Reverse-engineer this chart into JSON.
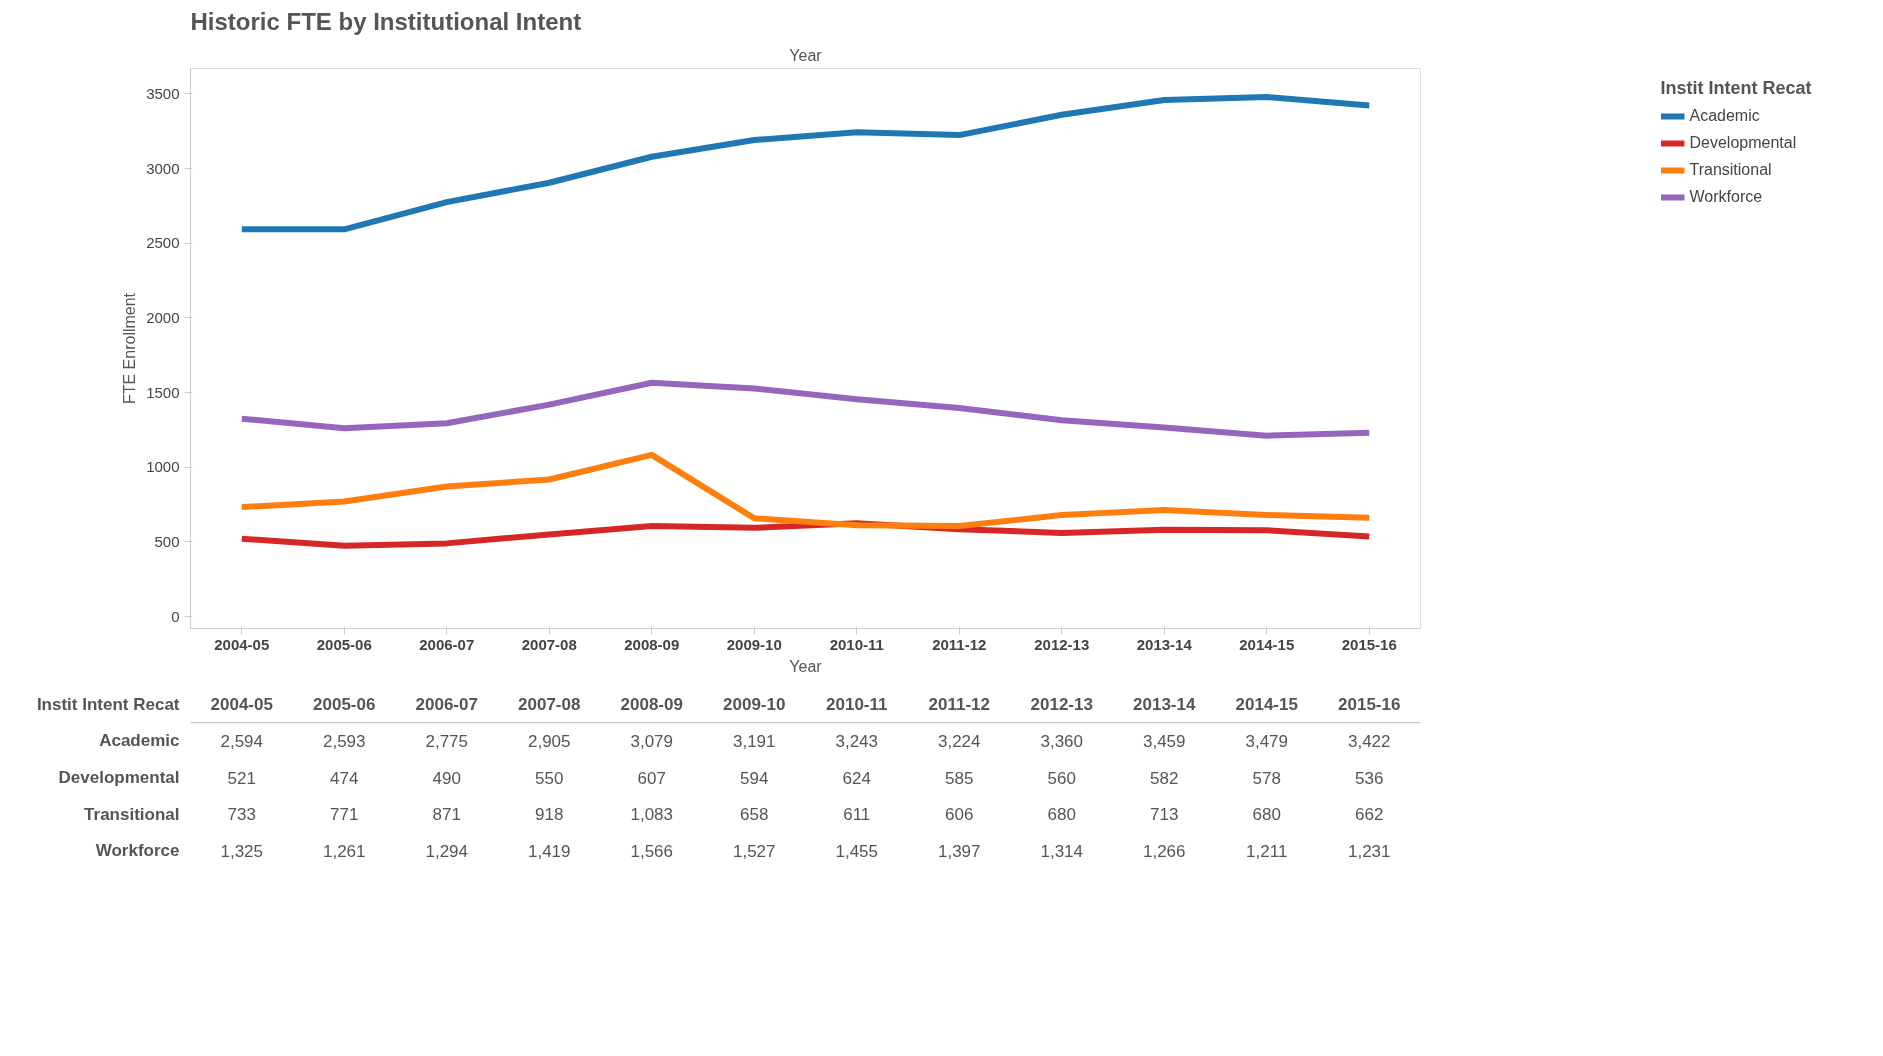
{
  "chart_data": {
    "type": "line",
    "title": "Historic FTE by Institutional Intent",
    "xlabel": "Year",
    "x2label": "Year",
    "ylabel": "FTE Enrollment",
    "legend_title": "Instit Intent Recat",
    "categories": [
      "2004-05",
      "2005-06",
      "2006-07",
      "2007-08",
      "2008-09",
      "2009-10",
      "2010-11",
      "2011-12",
      "2012-13",
      "2013-14",
      "2014-15",
      "2015-16"
    ],
    "series": [
      {
        "name": "Academic",
        "color": "#1f77b4",
        "values": [
          2594,
          2593,
          2775,
          2905,
          3079,
          3191,
          3243,
          3224,
          3360,
          3459,
          3479,
          3422
        ],
        "value_labels": [
          "2,594",
          "2,593",
          "2,775",
          "2,905",
          "3,079",
          "3,191",
          "3,243",
          "3,224",
          "3,360",
          "3,459",
          "3,479",
          "3,422"
        ]
      },
      {
        "name": "Developmental",
        "color": "#d62728",
        "values": [
          521,
          474,
          490,
          550,
          607,
          594,
          624,
          585,
          560,
          582,
          578,
          536
        ],
        "value_labels": [
          "521",
          "474",
          "490",
          "550",
          "607",
          "594",
          "624",
          "585",
          "560",
          "582",
          "578",
          "536"
        ]
      },
      {
        "name": "Transitional",
        "color": "#ff7f0e",
        "values": [
          733,
          771,
          871,
          918,
          1083,
          658,
          611,
          606,
          680,
          713,
          680,
          662
        ],
        "value_labels": [
          "733",
          "771",
          "871",
          "918",
          "1,083",
          "658",
          "611",
          "606",
          "680",
          "713",
          "680",
          "662"
        ]
      },
      {
        "name": "Workforce",
        "color": "#9467bd",
        "values": [
          1325,
          1261,
          1294,
          1419,
          1566,
          1527,
          1455,
          1397,
          1314,
          1266,
          1211,
          1231
        ],
        "value_labels": [
          "1,325",
          "1,261",
          "1,294",
          "1,419",
          "1,566",
          "1,527",
          "1,455",
          "1,397",
          "1,314",
          "1,266",
          "1,211",
          "1,231"
        ]
      }
    ],
    "ylim": [
      -80,
      3670
    ],
    "yticks": [
      0,
      500,
      1000,
      1500,
      2000,
      2500,
      3000,
      3500
    ],
    "grid": false,
    "legend": "top right",
    "line_style": "solid",
    "marker": "none"
  }
}
